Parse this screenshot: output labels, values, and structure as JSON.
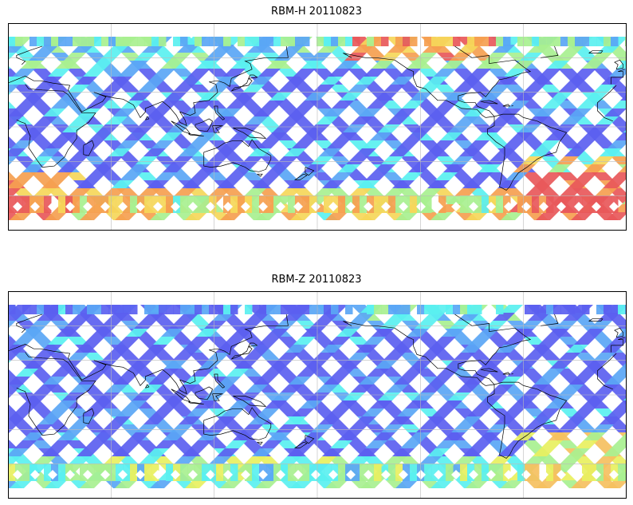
{
  "panels": [
    {
      "title": "RBM-H 20110823",
      "variable": "RBM-H",
      "date": "20110823",
      "colormap": "jet",
      "colors": {
        "low": "#5b5ff0",
        "low2": "#5aa6f5",
        "mid": "#5af0f0",
        "mid2": "#a8f090",
        "high": "#f5d75a",
        "higher": "#f5a050",
        "highest": "#e8585a"
      },
      "hot_regions": [
        "south-atlantic",
        "south-west-indian",
        "north-pacific-strip"
      ]
    },
    {
      "title": "RBM-Z 20110823",
      "variable": "RBM-Z",
      "date": "20110823",
      "colormap": "jet",
      "colors": {
        "low": "#5b5ff0",
        "low2": "#5aa6f5",
        "mid": "#5af0f0",
        "mid2": "#a8f090",
        "high": "#e8f060",
        "higher": "#f5c060",
        "highest": "#f5a050"
      },
      "hot_regions": [
        "south-atlantic-weak"
      ]
    }
  ],
  "map": {
    "projection": "PlateCarree",
    "central_longitude": 180,
    "lon_gridlines": [
      60,
      120,
      180,
      240,
      300
    ],
    "lat_gridlines": [
      -60,
      -30,
      0,
      30,
      60
    ],
    "coastline_color": "#000000",
    "gridline_color": "#bbbbbb"
  }
}
